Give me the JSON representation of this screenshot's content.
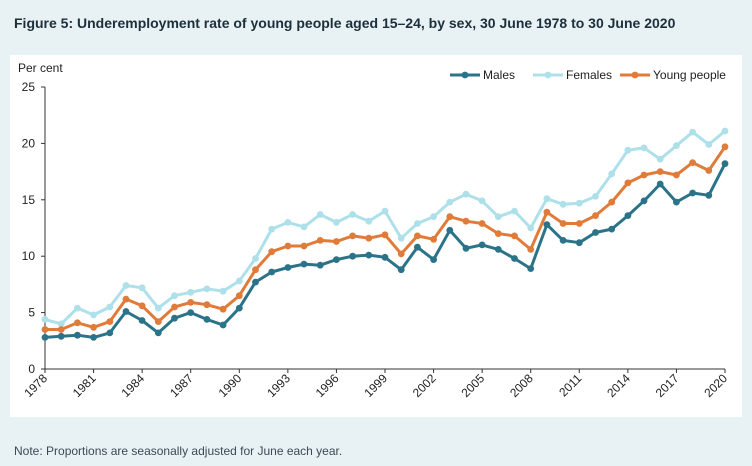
{
  "figure": {
    "title": "Figure 5: Underemployment rate of young people aged 15–24, by sex, 30 June 1978 to 30 June 2020",
    "note": "Note: Proportions are seasonally adjusted for June each year."
  },
  "chart_data": {
    "type": "line",
    "title": "Figure 5: Underemployment rate of young people aged 15–24, by sex, 30 June 1978 to 30 June 2020",
    "xlabel": "",
    "ylabel": "Per cent",
    "ylim": [
      0,
      25
    ],
    "yticks": [
      0,
      5,
      10,
      15,
      20,
      25
    ],
    "xlim": [
      1978,
      2020
    ],
    "xticks": [
      "1978",
      "1981",
      "1984",
      "1987",
      "1990",
      "1993",
      "1996",
      "1999",
      "2002",
      "2005",
      "2008",
      "2011",
      "2014",
      "2017",
      "2020"
    ],
    "grid": false,
    "legend_position": "top-right",
    "x": [
      1978,
      1979,
      1980,
      1981,
      1982,
      1983,
      1984,
      1985,
      1986,
      1987,
      1988,
      1989,
      1990,
      1991,
      1992,
      1993,
      1994,
      1995,
      1996,
      1997,
      1998,
      1999,
      2000,
      2001,
      2002,
      2003,
      2004,
      2005,
      2006,
      2007,
      2008,
      2009,
      2010,
      2011,
      2012,
      2013,
      2014,
      2015,
      2016,
      2017,
      2018,
      2019,
      2020
    ],
    "series": [
      {
        "name": "Males",
        "color": "#2a7388",
        "values": [
          2.8,
          2.9,
          3.0,
          2.8,
          3.2,
          5.1,
          4.3,
          3.2,
          4.5,
          5.0,
          4.4,
          3.9,
          5.4,
          7.7,
          8.6,
          9.0,
          9.3,
          9.2,
          9.7,
          10.0,
          10.1,
          9.9,
          8.8,
          10.8,
          9.7,
          12.3,
          10.7,
          11.0,
          10.6,
          9.8,
          8.9,
          12.8,
          11.4,
          11.2,
          12.1,
          12.4,
          13.6,
          14.9,
          16.4,
          14.8,
          15.6,
          15.4,
          18.2
        ]
      },
      {
        "name": "Females",
        "color": "#aee0ea",
        "values": [
          4.4,
          4.0,
          5.4,
          4.8,
          5.5,
          7.4,
          7.2,
          5.4,
          6.5,
          6.8,
          7.1,
          6.9,
          7.8,
          9.8,
          12.4,
          13.0,
          12.6,
          13.7,
          13.0,
          13.7,
          13.1,
          14.0,
          11.6,
          12.9,
          13.5,
          14.8,
          15.5,
          14.9,
          13.5,
          14.0,
          12.5,
          15.1,
          14.6,
          14.7,
          15.3,
          17.3,
          19.4,
          19.6,
          18.6,
          19.8,
          21.0,
          19.9,
          21.1
        ]
      },
      {
        "name": "Young people",
        "color": "#e07b39",
        "values": [
          3.5,
          3.5,
          4.1,
          3.7,
          4.2,
          6.2,
          5.6,
          4.2,
          5.5,
          5.9,
          5.7,
          5.3,
          6.5,
          8.8,
          10.4,
          10.9,
          10.9,
          11.4,
          11.3,
          11.8,
          11.6,
          11.9,
          10.2,
          11.8,
          11.5,
          13.5,
          13.1,
          12.9,
          12.0,
          11.8,
          10.6,
          13.9,
          12.9,
          12.9,
          13.6,
          14.8,
          16.5,
          17.2,
          17.5,
          17.2,
          18.3,
          17.6,
          19.7
        ]
      }
    ]
  }
}
